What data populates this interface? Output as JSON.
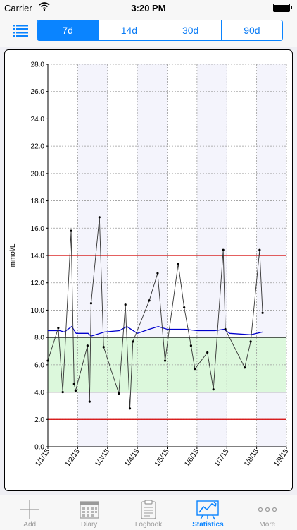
{
  "status_bar": {
    "carrier": "Carrier",
    "time": "3:20 PM"
  },
  "toolbar": {
    "segments": [
      {
        "label": "7d",
        "selected": true
      },
      {
        "label": "14d",
        "selected": false
      },
      {
        "label": "30d",
        "selected": false
      },
      {
        "label": "90d",
        "selected": false
      }
    ]
  },
  "tabbar": {
    "items": [
      {
        "label": "Add",
        "icon": "plus-icon"
      },
      {
        "label": "Diary",
        "icon": "calendar-icon"
      },
      {
        "label": "Logbook",
        "icon": "clipboard-icon"
      },
      {
        "label": "Statistics",
        "icon": "chart-icon",
        "active": true
      },
      {
        "label": "More",
        "icon": "more-icon"
      }
    ]
  },
  "colors": {
    "accent": "#0a84ff",
    "range_band": "#dcf8dc",
    "limit_lines": "#d40000",
    "trend_line": "#0000cc",
    "alt_column": "#f4f4fc"
  },
  "chart_data": {
    "type": "line",
    "ylabel": "mmol/L",
    "ylim": [
      0,
      28
    ],
    "y_ticks": [
      "0.0",
      "2.0",
      "4.0",
      "6.0",
      "8.0",
      "10.0",
      "12.0",
      "14.0",
      "16.0",
      "18.0",
      "20.0",
      "22.0",
      "24.0",
      "26.0",
      "28.0"
    ],
    "x_tick_labels": [
      "1/1/15",
      "1/2/15",
      "1/3/15",
      "1/4/15",
      "1/5/15",
      "1/6/15",
      "1/7/15",
      "1/8/15",
      "1/9/15"
    ],
    "xlim_days": [
      0,
      8
    ],
    "target_range": [
      4.0,
      8.0
    ],
    "limit_lines": [
      2.0,
      14.0
    ],
    "grid": true,
    "series": [
      {
        "kind": "readings",
        "points": [
          [
            0.0,
            6.3
          ],
          [
            0.35,
            8.7
          ],
          [
            0.5,
            4.0
          ],
          [
            0.78,
            15.8
          ],
          [
            0.88,
            4.6
          ],
          [
            0.93,
            4.1
          ],
          [
            1.33,
            7.4
          ],
          [
            1.4,
            3.3
          ],
          [
            1.45,
            10.5
          ],
          [
            1.73,
            16.8
          ],
          [
            1.87,
            7.3
          ],
          [
            2.38,
            3.9
          ],
          [
            2.6,
            10.4
          ],
          [
            2.75,
            2.8
          ],
          [
            2.85,
            7.7
          ],
          [
            3.4,
            10.7
          ],
          [
            3.68,
            12.7
          ],
          [
            3.93,
            6.3
          ],
          [
            4.37,
            13.4
          ],
          [
            4.57,
            10.2
          ],
          [
            4.8,
            7.4
          ],
          [
            4.93,
            5.7
          ],
          [
            5.35,
            6.9
          ],
          [
            5.55,
            4.2
          ],
          [
            5.88,
            14.4
          ],
          [
            5.95,
            8.6
          ],
          [
            6.6,
            5.8
          ],
          [
            6.8,
            7.7
          ],
          [
            7.1,
            14.4
          ],
          [
            7.2,
            9.8
          ]
        ]
      },
      {
        "kind": "moving-average",
        "points": [
          [
            0.0,
            8.5
          ],
          [
            0.4,
            8.5
          ],
          [
            0.55,
            8.4
          ],
          [
            0.8,
            8.8
          ],
          [
            0.95,
            8.3
          ],
          [
            1.35,
            8.3
          ],
          [
            1.45,
            8.1
          ],
          [
            1.9,
            8.4
          ],
          [
            2.4,
            8.5
          ],
          [
            2.65,
            8.8
          ],
          [
            3.0,
            8.3
          ],
          [
            3.4,
            8.6
          ],
          [
            3.7,
            8.8
          ],
          [
            4.0,
            8.6
          ],
          [
            4.6,
            8.6
          ],
          [
            5.0,
            8.5
          ],
          [
            5.6,
            8.5
          ],
          [
            5.9,
            8.6
          ],
          [
            6.1,
            8.3
          ],
          [
            6.8,
            8.2
          ],
          [
            7.2,
            8.4
          ]
        ]
      }
    ]
  }
}
